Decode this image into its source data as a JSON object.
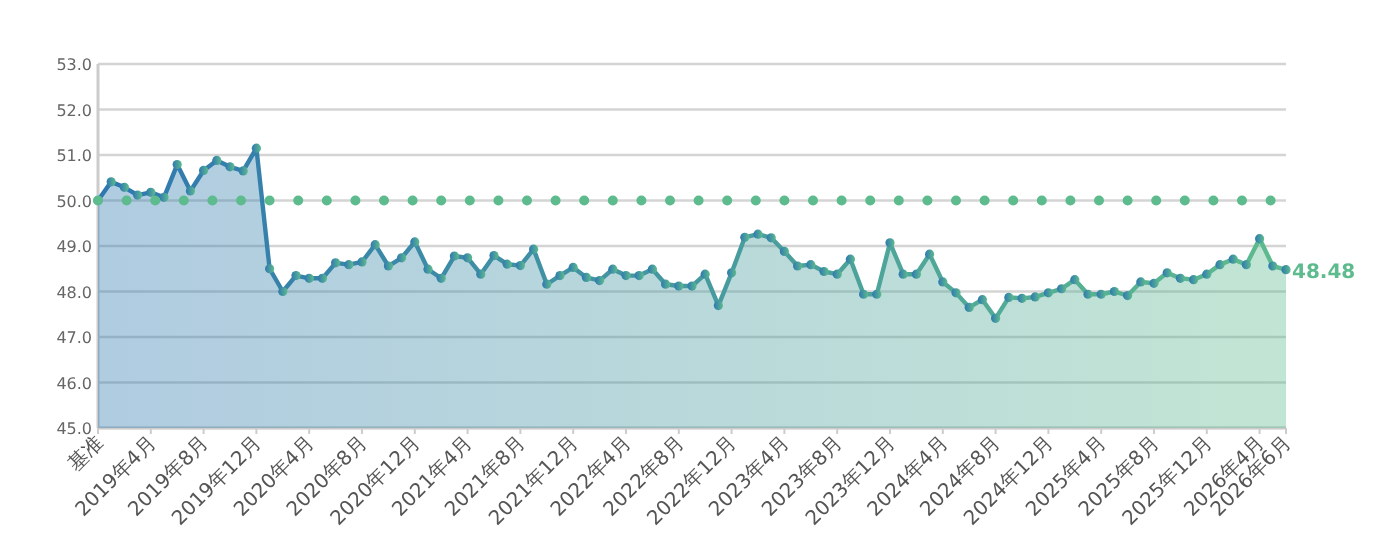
{
  "chart_data": {
    "type": "area",
    "categories": [
      "基准",
      null,
      null,
      null,
      "2019年4月",
      null,
      null,
      null,
      "2019年8月",
      null,
      null,
      null,
      "2019年12月",
      null,
      null,
      null,
      "2020年4月",
      null,
      null,
      null,
      "2020年8月",
      null,
      null,
      null,
      "2020年12月",
      null,
      null,
      null,
      "2021年4月",
      null,
      null,
      null,
      "2021年8月",
      null,
      null,
      null,
      "2021年12月",
      null,
      null,
      null,
      "2022年4月",
      null,
      null,
      null,
      "2022年8月",
      null,
      null,
      null,
      "2022年12月",
      null,
      null,
      null,
      "2023年4月",
      null,
      null,
      null,
      "2023年8月",
      null,
      null,
      null,
      "2023年12月",
      null,
      null,
      null,
      "2024年4月",
      null,
      null,
      null,
      "2024年8月",
      null,
      null,
      null,
      "2024年12月",
      null,
      null,
      null,
      "2025年4月",
      null,
      null,
      null,
      "2025年8月",
      null,
      null,
      null,
      "2025年12月",
      null,
      null,
      null,
      "2026年4月",
      null,
      "2026年6月"
    ],
    "series": [
      {
        "color": "#2f78b0",
        "values": [
          50.0,
          50.41,
          50.29,
          50.12,
          50.18,
          50.07,
          50.79,
          50.21,
          50.66,
          50.88,
          50.74,
          50.65,
          51.15,
          48.5,
          48.0,
          48.35,
          48.29,
          48.29,
          48.63,
          48.59,
          48.65,
          49.03,
          48.56,
          48.74,
          49.09,
          48.49,
          48.29,
          48.78,
          48.74,
          48.38,
          48.79,
          48.6,
          48.57,
          48.93,
          48.16,
          48.35,
          48.53,
          48.31,
          48.24,
          48.49,
          48.35,
          48.35,
          48.49,
          48.16,
          48.12,
          48.12,
          48.38,
          47.69,
          48.41,
          49.19,
          49.26,
          49.18,
          48.88,
          48.56,
          48.59,
          48.44,
          48.38,
          48.71,
          47.94,
          47.94,
          49.07,
          48.38,
          48.38,
          48.82,
          48.21,
          47.97,
          47.65,
          47.82,
          47.41,
          47.87,
          47.85,
          47.88,
          47.97,
          48.06,
          48.26,
          47.94,
          47.94,
          48.0,
          47.91,
          48.21,
          48.18,
          48.41,
          48.29,
          48.26,
          48.38,
          48.59,
          48.71,
          48.59,
          49.16,
          48.56,
          48.48
        ]
      }
    ],
    "ylim": [
      45,
      53
    ],
    "yticks": [
      {
        "value": 45,
        "label": "45.0"
      },
      {
        "value": 46,
        "label": "46.0"
      },
      {
        "value": 47,
        "label": "47.0"
      },
      {
        "value": 48,
        "label": "48.0"
      },
      {
        "value": 49,
        "label": "49.0"
      },
      {
        "value": 50,
        "label": "50.0"
      },
      {
        "value": 51,
        "label": "51.0"
      },
      {
        "value": 52,
        "label": "52.0"
      },
      {
        "value": 53,
        "label": "53.0"
      }
    ],
    "grid": "y",
    "marker": "circle",
    "ref_lines": [
      {
        "axis": "y",
        "value": 50,
        "color": "#5dbb8e",
        "line_style": "dotted"
      }
    ],
    "annotations": [
      {
        "text": "48.48",
        "x": "2026年6月",
        "y": 48.48
      }
    ]
  }
}
